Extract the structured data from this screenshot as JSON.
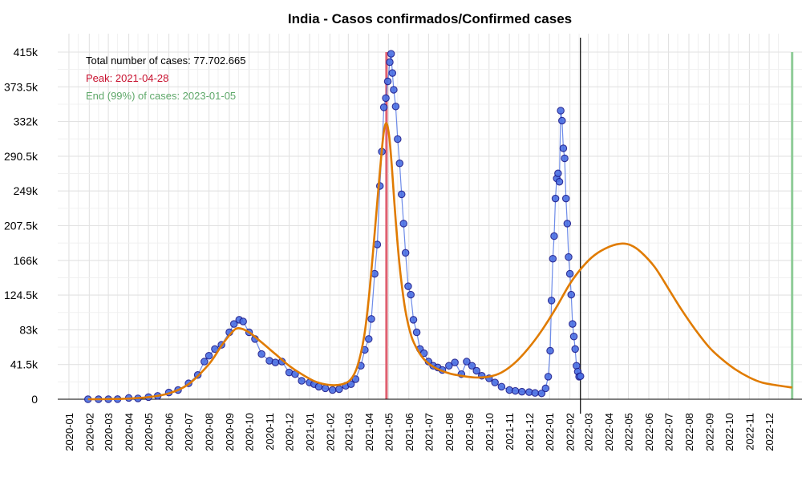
{
  "chart_data": {
    "type": "line",
    "title": "India - Casos confirmados/Confirmed cases",
    "xlabel": "",
    "ylabel": "",
    "y_ticks": [
      "0",
      "41.5k",
      "83k",
      "124.5k",
      "166k",
      "207.5k",
      "249k",
      "290.5k",
      "332k",
      "373.5k",
      "415k"
    ],
    "y_tick_values": [
      0,
      41500,
      83000,
      124500,
      166000,
      207500,
      249000,
      290500,
      332000,
      373500,
      415000
    ],
    "ylim": [
      0,
      415000
    ],
    "x_ticks": [
      "2020-01",
      "2020-02",
      "2020-03",
      "2020-04",
      "2020-05",
      "2020-06",
      "2020-07",
      "2020-08",
      "2020-09",
      "2020-10",
      "2020-11",
      "2020-12",
      "2021-01",
      "2021-02",
      "2021-03",
      "2021-04",
      "2021-05",
      "2021-06",
      "2021-07",
      "2021-08",
      "2021-09",
      "2021-10",
      "2021-11",
      "2021-12",
      "2022-01",
      "2022-02",
      "2022-03",
      "2022-04",
      "2022-05",
      "2022-06",
      "2022-07",
      "2022-08",
      "2022-09",
      "2022-10",
      "2022-11",
      "2022-12"
    ],
    "xlim": [
      "2019-12-15",
      "2023-01-20"
    ],
    "grid": true,
    "annotations": {
      "total": "Total number of cases: 77.702.665",
      "peak": "Peak: 2021-04-28",
      "end": "End (99%) of cases: 2023-01-05"
    },
    "vertical_lines": [
      {
        "kind": "peak",
        "date": "2021-04-28",
        "color": "#e06070"
      },
      {
        "kind": "current",
        "date": "2022-02-17",
        "color": "#000000"
      },
      {
        "kind": "end",
        "date": "2023-01-05",
        "color": "#8fcc98"
      }
    ],
    "series": [
      {
        "kind": "observed",
        "color": "#4a6fe3",
        "stroke": "#1a1a8c",
        "x": [
          "2020-01-30",
          "2020-02-15",
          "2020-03-01",
          "2020-03-15",
          "2020-04-01",
          "2020-04-15",
          "2020-05-01",
          "2020-05-15",
          "2020-06-01",
          "2020-06-15",
          "2020-07-01",
          "2020-07-15",
          "2020-07-25",
          "2020-08-01",
          "2020-08-10",
          "2020-08-20",
          "2020-09-01",
          "2020-09-08",
          "2020-09-16",
          "2020-09-22",
          "2020-10-01",
          "2020-10-10",
          "2020-10-20",
          "2020-11-01",
          "2020-11-10",
          "2020-11-20",
          "2020-12-01",
          "2020-12-10",
          "2020-12-20",
          "2021-01-01",
          "2021-01-08",
          "2021-01-15",
          "2021-01-25",
          "2021-02-05",
          "2021-02-15",
          "2021-02-25",
          "2021-03-05",
          "2021-03-12",
          "2021-03-20",
          "2021-03-26",
          "2021-04-01",
          "2021-04-05",
          "2021-04-10",
          "2021-04-14",
          "2021-04-18",
          "2021-04-21",
          "2021-04-24",
          "2021-04-27",
          "2021-04-30",
          "2021-05-03",
          "2021-05-05",
          "2021-05-07",
          "2021-05-09",
          "2021-05-12",
          "2021-05-15",
          "2021-05-18",
          "2021-05-21",
          "2021-05-24",
          "2021-05-27",
          "2021-05-31",
          "2021-06-04",
          "2021-06-08",
          "2021-06-13",
          "2021-06-18",
          "2021-06-24",
          "2021-07-01",
          "2021-07-08",
          "2021-07-15",
          "2021-07-22",
          "2021-08-01",
          "2021-08-10",
          "2021-08-20",
          "2021-08-28",
          "2021-09-05",
          "2021-09-12",
          "2021-09-20",
          "2021-10-01",
          "2021-10-10",
          "2021-10-20",
          "2021-11-01",
          "2021-11-10",
          "2021-11-20",
          "2021-12-01",
          "2021-12-10",
          "2021-12-20",
          "2021-12-26",
          "2021-12-30",
          "2022-01-02",
          "2022-01-04",
          "2022-01-06",
          "2022-01-08",
          "2022-01-10",
          "2022-01-12",
          "2022-01-14",
          "2022-01-16",
          "2022-01-18",
          "2022-01-20",
          "2022-01-22",
          "2022-01-24",
          "2022-01-26",
          "2022-01-28",
          "2022-01-30",
          "2022-02-01",
          "2022-02-03",
          "2022-02-05",
          "2022-02-07",
          "2022-02-09",
          "2022-02-11",
          "2022-02-13",
          "2022-02-15",
          "2022-02-17"
        ],
        "values": [
          1,
          1,
          5,
          100,
          1500,
          1000,
          2500,
          4000,
          8000,
          11000,
          19000,
          29000,
          45000,
          52000,
          60000,
          65000,
          80000,
          90000,
          95000,
          93000,
          80000,
          72000,
          54000,
          46000,
          44000,
          45000,
          32000,
          30000,
          22000,
          20000,
          18000,
          15000,
          13000,
          11000,
          12000,
          16000,
          18000,
          24000,
          40000,
          59000,
          72000,
          96000,
          150000,
          185000,
          255000,
          296000,
          349000,
          360000,
          380000,
          403000,
          413000,
          390000,
          370000,
          350000,
          311000,
          282000,
          245000,
          210000,
          175000,
          135000,
          125000,
          95000,
          80000,
          60000,
          55000,
          45000,
          40000,
          38000,
          35000,
          40000,
          44000,
          30000,
          45000,
          40000,
          34000,
          28000,
          25000,
          20000,
          15000,
          11000,
          10000,
          9000,
          8500,
          7500,
          7000,
          13000,
          27000,
          58000,
          118000,
          168000,
          195000,
          240000,
          264000,
          270000,
          260000,
          345000,
          333000,
          300000,
          288000,
          240000,
          210000,
          170000,
          150000,
          125000,
          90000,
          75000,
          60000,
          40000,
          33000,
          27000,
          27500
        ]
      },
      {
        "kind": "fitted",
        "color": "#e07b00",
        "x": [
          "2020-01-30",
          "2020-03-01",
          "2020-04-01",
          "2020-05-01",
          "2020-06-01",
          "2020-07-01",
          "2020-08-01",
          "2020-08-20",
          "2020-09-05",
          "2020-09-15",
          "2020-10-01",
          "2020-10-20",
          "2020-11-10",
          "2020-12-01",
          "2020-12-20",
          "2021-01-10",
          "2021-02-01",
          "2021-02-20",
          "2021-03-05",
          "2021-03-15",
          "2021-03-25",
          "2021-04-01",
          "2021-04-08",
          "2021-04-15",
          "2021-04-20",
          "2021-04-24",
          "2021-04-28",
          "2021-05-02",
          "2021-05-06",
          "2021-05-10",
          "2021-05-15",
          "2021-05-20",
          "2021-05-27",
          "2021-06-05",
          "2021-06-15",
          "2021-06-25",
          "2021-07-10",
          "2021-08-01",
          "2021-08-20",
          "2021-09-10",
          "2021-10-01",
          "2021-10-20",
          "2021-11-10",
          "2021-12-01",
          "2021-12-20",
          "2022-01-10",
          "2022-02-01",
          "2022-02-20",
          "2022-03-10",
          "2022-04-01",
          "2022-04-20",
          "2022-05-05",
          "2022-05-20",
          "2022-06-10",
          "2022-07-01",
          "2022-07-20",
          "2022-08-10",
          "2022-09-01",
          "2022-09-20",
          "2022-10-10",
          "2022-11-01",
          "2022-11-20",
          "2022-12-10",
          "2023-01-05"
        ],
        "values": [
          0,
          200,
          800,
          2500,
          7000,
          18000,
          42000,
          64000,
          80000,
          85000,
          80000,
          68000,
          54000,
          40000,
          30000,
          21000,
          17000,
          18000,
          24000,
          40000,
          75000,
          120000,
          180000,
          245000,
          290000,
          320000,
          330000,
          315000,
          280000,
          235000,
          185000,
          145000,
          105000,
          75000,
          58000,
          47000,
          38000,
          31000,
          28000,
          26000,
          27000,
          32000,
          44000,
          62000,
          82000,
          108000,
          138000,
          158000,
          172000,
          182000,
          186000,
          184000,
          176000,
          158000,
          132000,
          108000,
          84000,
          62000,
          48000,
          36000,
          26000,
          20000,
          17000,
          14000
        ]
      }
    ]
  }
}
